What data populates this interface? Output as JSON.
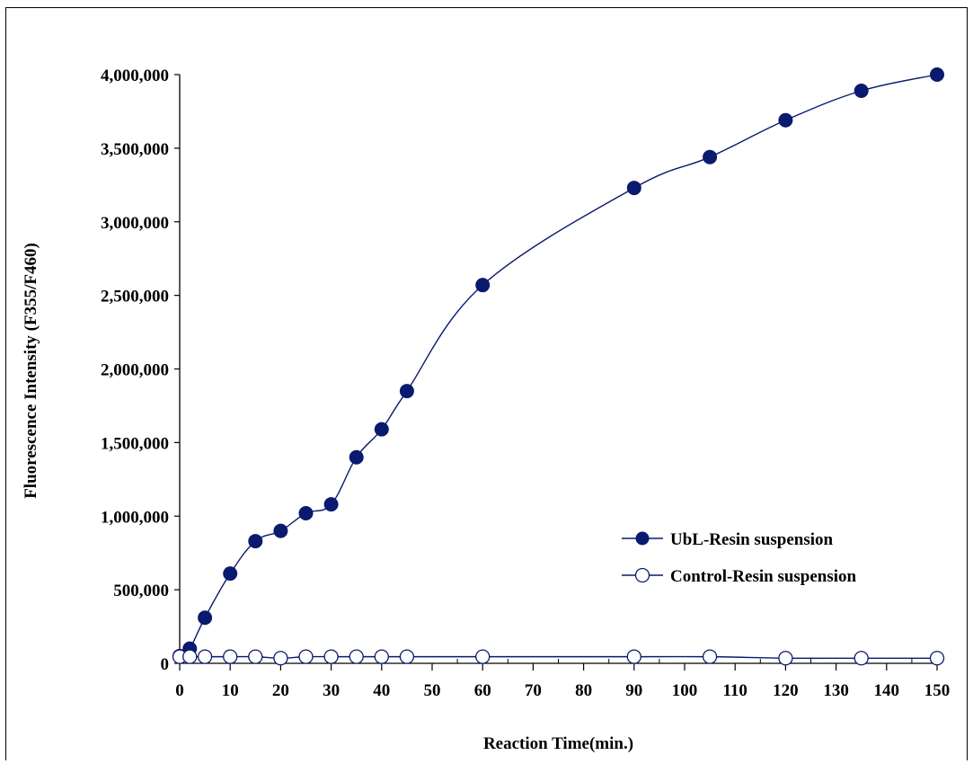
{
  "chart_data": {
    "type": "line",
    "title": "",
    "xlabel": "Reaction Time(min.)",
    "ylabel": "Fluorescence Intensity (F355/F460)",
    "xlim": [
      0,
      150
    ],
    "ylim": [
      0,
      4000000
    ],
    "x_ticks": [
      0,
      10,
      20,
      30,
      40,
      50,
      60,
      70,
      80,
      90,
      100,
      110,
      120,
      130,
      140,
      150
    ],
    "y_ticks": [
      0,
      500000,
      1000000,
      1500000,
      2000000,
      2500000,
      3000000,
      3500000,
      4000000
    ],
    "x_tick_labels": [
      "0",
      "10",
      "20",
      "30",
      "40",
      "50",
      "60",
      "70",
      "80",
      "90",
      "100",
      "110",
      "120",
      "130",
      "140",
      "150"
    ],
    "y_tick_labels": [
      "0",
      "500,000",
      "1,000,000",
      "1,500,000",
      "2,000,000",
      "2,500,000",
      "3,000,000",
      "3,500,000",
      "4,000,000"
    ],
    "grid": false,
    "legend_position": "right",
    "line_color": "#0a1a6e",
    "series": [
      {
        "name": "UbL-Resin suspension",
        "marker": "filled-circle",
        "x": [
          0,
          2,
          5,
          10,
          15,
          20,
          25,
          30,
          35,
          40,
          45,
          60,
          90,
          105,
          120,
          135,
          150
        ],
        "y": [
          50000,
          100000,
          310000,
          610000,
          830000,
          900000,
          1020000,
          1080000,
          1400000,
          1590000,
          1850000,
          2570000,
          3230000,
          3440000,
          3690000,
          3890000,
          4000000
        ]
      },
      {
        "name": "Control-Resin suspension",
        "marker": "open-circle",
        "x": [
          0,
          2,
          5,
          10,
          15,
          20,
          25,
          30,
          35,
          40,
          45,
          60,
          90,
          105,
          120,
          135,
          150
        ],
        "y": [
          45000,
          45000,
          45000,
          45000,
          45000,
          35000,
          45000,
          45000,
          45000,
          45000,
          45000,
          45000,
          45000,
          45000,
          35000,
          35000,
          35000
        ]
      }
    ]
  }
}
